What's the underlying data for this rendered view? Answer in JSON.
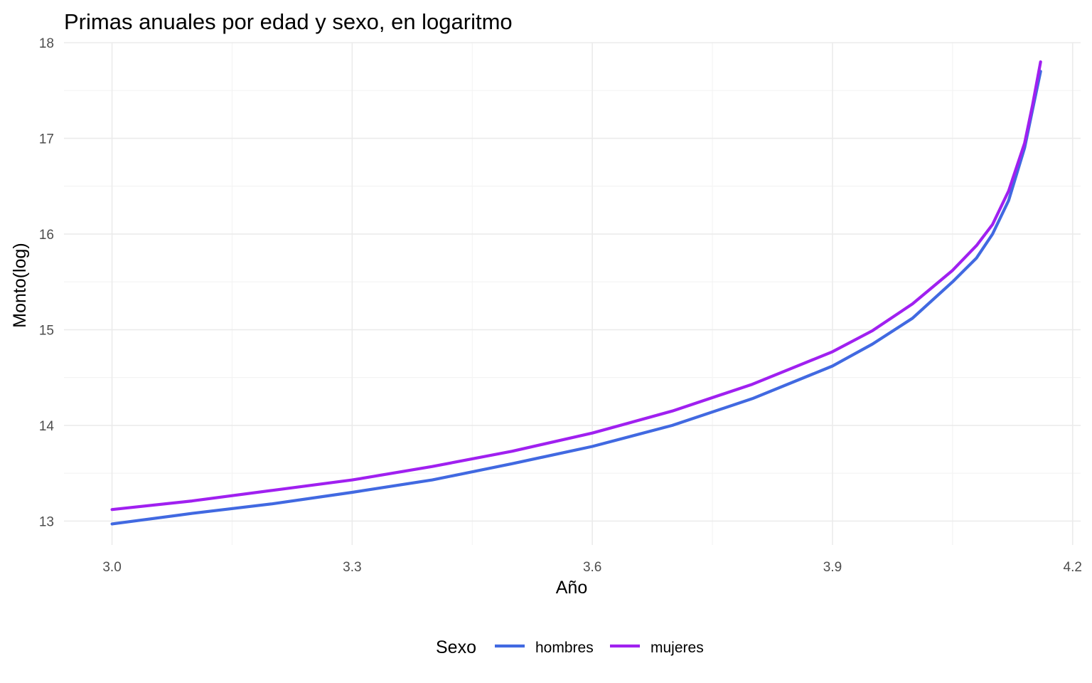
{
  "chart_data": {
    "type": "line",
    "title": "Primas anuales por edad y sexo, en logaritmo",
    "xlabel": "Año",
    "ylabel": "Monto(log)",
    "xlim": [
      2.94,
      4.21
    ],
    "ylim": [
      12.75,
      18.0
    ],
    "x_ticks": [
      "3.0",
      "3.3",
      "3.6",
      "3.9",
      "4.2"
    ],
    "x_tick_values": [
      3.0,
      3.3,
      3.6,
      3.9,
      4.2
    ],
    "y_ticks": [
      "13",
      "14",
      "15",
      "16",
      "17",
      "18"
    ],
    "y_tick_values": [
      13,
      14,
      15,
      16,
      17,
      18
    ],
    "grid": true,
    "legend": {
      "title": "Sexo",
      "position": "bottom",
      "entries": [
        "hombres",
        "mujeres"
      ]
    },
    "series": [
      {
        "name": "hombres",
        "color": "#4169E1",
        "x": [
          3.0,
          3.1,
          3.2,
          3.3,
          3.4,
          3.5,
          3.6,
          3.7,
          3.8,
          3.9,
          3.95,
          4.0,
          4.05,
          4.08,
          4.1,
          4.12,
          4.14,
          4.15,
          4.16
        ],
        "y": [
          12.97,
          13.08,
          13.18,
          13.3,
          13.43,
          13.6,
          13.78,
          14.0,
          14.28,
          14.62,
          14.85,
          15.12,
          15.5,
          15.75,
          16.0,
          16.35,
          16.9,
          17.3,
          17.7
        ]
      },
      {
        "name": "mujeres",
        "color": "#A020F0",
        "x": [
          3.0,
          3.1,
          3.2,
          3.3,
          3.4,
          3.5,
          3.6,
          3.7,
          3.8,
          3.9,
          3.95,
          4.0,
          4.05,
          4.08,
          4.1,
          4.12,
          4.14,
          4.15,
          4.16
        ],
        "y": [
          13.12,
          13.21,
          13.32,
          13.43,
          13.57,
          13.73,
          13.92,
          14.15,
          14.43,
          14.77,
          14.99,
          15.27,
          15.62,
          15.88,
          16.1,
          16.45,
          16.95,
          17.35,
          17.8
        ]
      }
    ]
  }
}
